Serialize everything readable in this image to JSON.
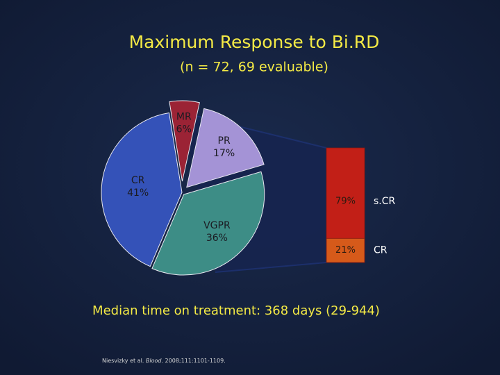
{
  "chart_data": [
    {
      "type": "pie",
      "title": "Maximum Response to Bi.RD",
      "subtitle": "(n = 72, 69 evaluable)",
      "categories": [
        "MR",
        "PR",
        "VGPR",
        "CR"
      ],
      "values": [
        6,
        17,
        36,
        41
      ],
      "value_labels": [
        "6%",
        "17%",
        "36%",
        "41%"
      ],
      "colors": [
        "#9b2335",
        "#a493d6",
        "#3d8d86",
        "#3452b8"
      ]
    },
    {
      "type": "stacked-bar",
      "categories": [
        "s.CR",
        "CR"
      ],
      "values": [
        79,
        21
      ],
      "value_labels": [
        "79%",
        "21%"
      ],
      "colors": [
        "#c21f17",
        "#d65a1a"
      ]
    }
  ],
  "annotation": "Median time on treatment: 368 days (29-944)",
  "citation": {
    "authors": "Niesvizky et al. ",
    "journal": "Blood",
    "rest": ". 2008;111:1101-1109."
  }
}
